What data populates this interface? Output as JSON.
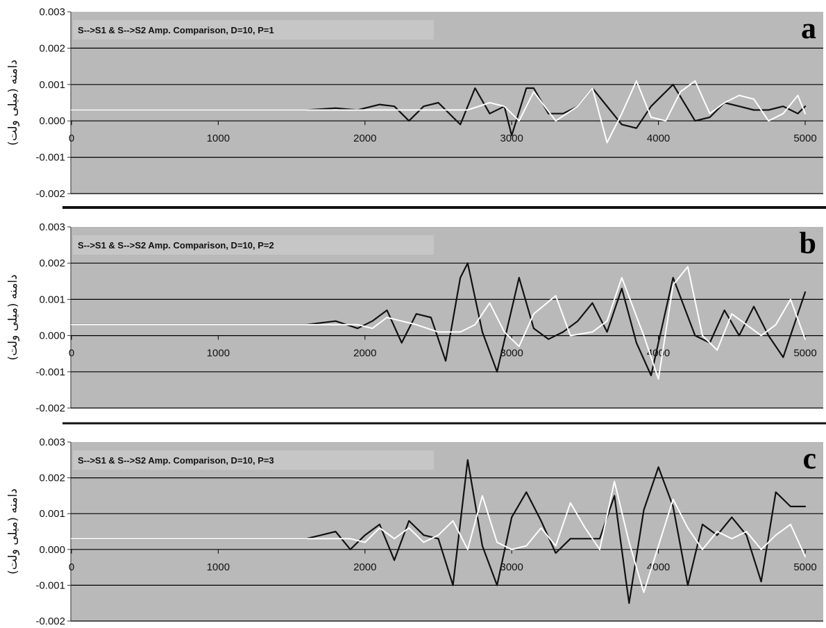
{
  "colors": {
    "plot_background": "#b9b9b9",
    "gridline": "#000000",
    "series_s1": "#111111",
    "series_s2": "#ffffff",
    "separator": "#111111"
  },
  "chart_data": [
    {
      "type": "line",
      "panel_letter": "a",
      "title": "S-->S1 & S-->S2 Amp. Comparison, D=10, P=1",
      "ylabel": "دامنه (میلی ولت)",
      "xlim": [
        0,
        5000
      ],
      "ylim": [
        -0.002,
        0.003
      ],
      "x_ticks": [
        "0",
        "1000",
        "2000",
        "3000",
        "4000",
        "5000"
      ],
      "y_ticks": [
        "0.003",
        "0.002",
        "0.001",
        "0.000",
        "-0.001",
        "-0.002"
      ],
      "grid": "horizontal",
      "series": [
        {
          "color": "#111111",
          "x": [
            0,
            400,
            800,
            1200,
            1600,
            1800,
            1950,
            2100,
            2200,
            2300,
            2400,
            2500,
            2600,
            2650,
            2700,
            2750,
            2850,
            2950,
            3000,
            3100,
            3150,
            3250,
            3350,
            3450,
            3550,
            3650,
            3750,
            3850,
            3950,
            4100,
            4250,
            4350,
            4450,
            4550,
            4650,
            4750,
            4850,
            4950,
            5000
          ],
          "y": [
            0.0003,
            0.0003,
            0.0003,
            0.0003,
            0.0003,
            0.00035,
            0.0003,
            0.00045,
            0.0004,
            0.0,
            0.0004,
            0.0005,
            0.0001,
            -0.0001,
            0.0004,
            0.0009,
            0.0002,
            0.0004,
            -0.0004,
            0.0009,
            0.0009,
            0.0002,
            0.0002,
            0.0004,
            0.0009,
            0.0004,
            -0.0001,
            -0.0002,
            0.0004,
            0.001,
            0.0,
            0.0001,
            0.0005,
            0.0004,
            0.0003,
            0.0003,
            0.0004,
            0.0002,
            0.0004
          ]
        },
        {
          "color": "#ffffff",
          "x": [
            0,
            400,
            800,
            1200,
            1600,
            1800,
            1950,
            2100,
            2250,
            2400,
            2550,
            2700,
            2850,
            2950,
            3050,
            3150,
            3300,
            3450,
            3550,
            3650,
            3750,
            3850,
            3950,
            4050,
            4150,
            4250,
            4350,
            4450,
            4550,
            4650,
            4750,
            4850,
            4950,
            5000
          ],
          "y": [
            0.0003,
            0.0003,
            0.0003,
            0.0003,
            0.0003,
            0.0003,
            0.0003,
            0.0003,
            0.0003,
            0.0003,
            0.0003,
            0.0003,
            0.0005,
            0.0004,
            0.0,
            0.0008,
            0.0,
            0.0004,
            0.0009,
            -0.0006,
            0.0002,
            0.0011,
            0.0001,
            0.0,
            0.0008,
            0.0011,
            0.0002,
            0.0005,
            0.0007,
            0.0006,
            0.0,
            0.0002,
            0.0007,
            0.0002
          ]
        }
      ]
    },
    {
      "type": "line",
      "panel_letter": "b",
      "title": "S-->S1 & S-->S2 Amp. Comparison, D=10, P=2",
      "ylabel": "دامنه (میلی ولت)",
      "xlim": [
        0,
        5000
      ],
      "ylim": [
        -0.002,
        0.003
      ],
      "x_ticks": [
        "0",
        "1000",
        "2000",
        "3000",
        "4000",
        "5000"
      ],
      "y_ticks": [
        "0.003",
        "0.002",
        "0.001",
        "0.000",
        "-0.001",
        "-0.002"
      ],
      "grid": "horizontal",
      "series": [
        {
          "color": "#111111",
          "x": [
            0,
            400,
            800,
            1200,
            1600,
            1800,
            1950,
            2050,
            2150,
            2250,
            2350,
            2450,
            2550,
            2650,
            2700,
            2800,
            2900,
            3050,
            3150,
            3250,
            3350,
            3450,
            3550,
            3650,
            3750,
            3850,
            3950,
            4100,
            4250,
            4350,
            4450,
            4550,
            4650,
            4750,
            4850,
            4950,
            5000
          ],
          "y": [
            0.0003,
            0.0003,
            0.0003,
            0.0003,
            0.0003,
            0.0004,
            0.0002,
            0.0004,
            0.0007,
            -0.0002,
            0.0006,
            0.0005,
            -0.0007,
            0.0016,
            0.002,
            0.0001,
            -0.001,
            0.0016,
            0.0002,
            -0.0001,
            0.0001,
            0.0004,
            0.0009,
            0.0001,
            0.0013,
            -0.0002,
            -0.0011,
            0.0016,
            0.0,
            -0.0002,
            0.0007,
            0.0,
            0.0008,
            0.0,
            -0.0006,
            0.0006,
            0.0012
          ]
        },
        {
          "color": "#ffffff",
          "x": [
            0,
            400,
            800,
            1200,
            1600,
            1800,
            1950,
            2050,
            2150,
            2250,
            2350,
            2500,
            2650,
            2750,
            2850,
            2950,
            3050,
            3150,
            3300,
            3400,
            3550,
            3650,
            3750,
            3900,
            4000,
            4100,
            4200,
            4300,
            4400,
            4500,
            4600,
            4700,
            4800,
            4900,
            5000
          ],
          "y": [
            0.0003,
            0.0003,
            0.0003,
            0.0003,
            0.0003,
            0.0003,
            0.0003,
            0.0002,
            0.0005,
            0.0004,
            0.0003,
            0.0001,
            0.0001,
            0.0003,
            0.0009,
            0.0001,
            -0.0003,
            0.0006,
            0.0011,
            0.0,
            0.0001,
            0.0004,
            0.0016,
            0.0,
            -0.0012,
            0.0014,
            0.0019,
            0.0,
            -0.0004,
            0.0006,
            0.0003,
            0.0,
            0.0003,
            0.001,
            -0.0001
          ]
        }
      ]
    },
    {
      "type": "line",
      "panel_letter": "c",
      "title": "S-->S1 & S-->S2 Amp. Comparison, D=10, P=3",
      "ylabel": "دامنه (میلی ولت)",
      "xlim": [
        0,
        5000
      ],
      "ylim": [
        -0.002,
        0.003
      ],
      "x_ticks": [
        "0",
        "1000",
        "2000",
        "3000",
        "4000",
        "5000"
      ],
      "y_ticks": [
        "0.003",
        "0.002",
        "0.001",
        "0.000",
        "-0.001",
        "-0.002"
      ],
      "grid": "horizontal",
      "series": [
        {
          "color": "#111111",
          "x": [
            0,
            400,
            800,
            1200,
            1600,
            1700,
            1800,
            1900,
            2000,
            2100,
            2200,
            2300,
            2400,
            2500,
            2600,
            2700,
            2800,
            2900,
            3000,
            3100,
            3200,
            3300,
            3400,
            3500,
            3600,
            3700,
            3800,
            3900,
            4000,
            4100,
            4200,
            4300,
            4400,
            4500,
            4600,
            4700,
            4800,
            4900,
            5000
          ],
          "y": [
            0.0003,
            0.0003,
            0.0003,
            0.0003,
            0.0003,
            0.0004,
            0.0005,
            0.0,
            0.0004,
            0.0007,
            -0.0003,
            0.0008,
            0.0004,
            0.0003,
            -0.001,
            0.0025,
            0.0001,
            -0.001,
            0.0009,
            0.0016,
            0.0008,
            -0.0001,
            0.0003,
            0.0003,
            0.0003,
            0.0015,
            -0.0015,
            0.0011,
            0.0023,
            0.0012,
            -0.001,
            0.0007,
            0.0004,
            0.0009,
            0.0004,
            -0.0009,
            0.0016,
            0.0012,
            0.0012
          ]
        },
        {
          "color": "#ffffff",
          "x": [
            0,
            400,
            800,
            1200,
            1600,
            1700,
            1800,
            1900,
            2000,
            2100,
            2200,
            2300,
            2400,
            2500,
            2600,
            2700,
            2800,
            2900,
            3000,
            3100,
            3200,
            3300,
            3400,
            3500,
            3600,
            3700,
            3800,
            3900,
            4000,
            4100,
            4200,
            4300,
            4400,
            4500,
            4600,
            4700,
            4800,
            4900,
            5000
          ],
          "y": [
            0.0003,
            0.0003,
            0.0003,
            0.0003,
            0.0003,
            0.0003,
            0.0003,
            0.0003,
            0.0002,
            0.0006,
            0.0003,
            0.0006,
            0.0002,
            0.0004,
            0.0008,
            0.0,
            0.0015,
            0.0002,
            0.0,
            0.0001,
            0.0006,
            0.0001,
            0.0013,
            0.0006,
            0.0,
            0.0019,
            0.0002,
            -0.0012,
            0.0001,
            0.0014,
            0.0006,
            0.0,
            0.0005,
            0.0003,
            0.0005,
            0.0,
            0.0004,
            0.0007,
            -0.0002
          ]
        }
      ]
    }
  ]
}
